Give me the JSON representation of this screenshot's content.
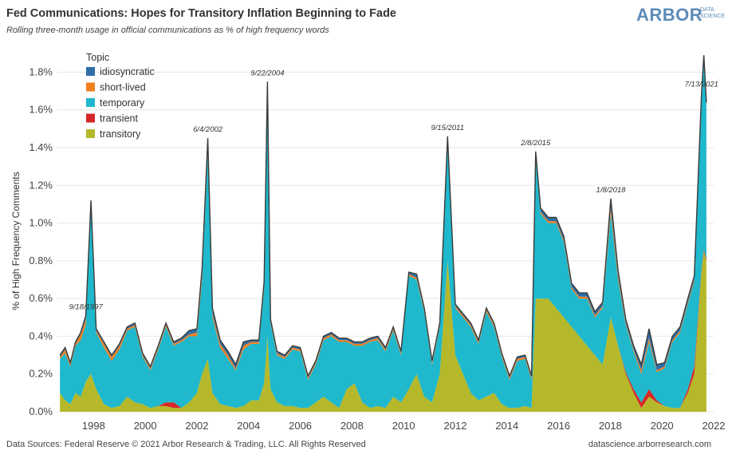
{
  "header": {
    "title": "Fed Communications: Hopes for Transitory Inflation Beginning to Fade",
    "subtitle": "Rolling three-month usage in official communications as % of high frequency words"
  },
  "logo": {
    "main": "ARBOR",
    "sub_line1": "DATA",
    "sub_line2": "SCIENCE"
  },
  "footer": {
    "left": "Data Sources: Federal Reserve © 2021 Arbor Research & Trading, LLC. All Rights Reserved",
    "right": "datascience.arborresearch.com"
  },
  "chart_data": {
    "type": "area",
    "stacked": true,
    "ylabel": "% of High Frequency Comments",
    "xlabel": "",
    "ylim": [
      0,
      1.95
    ],
    "xlim": [
      1996.6,
      2022.0
    ],
    "y_ticks": [
      "0.0%",
      "0.2%",
      "0.4%",
      "0.6%",
      "0.8%",
      "1.0%",
      "1.2%",
      "1.4%",
      "1.6%",
      "1.8%"
    ],
    "x_ticks": [
      "1998",
      "2000",
      "2002",
      "2004",
      "2006",
      "2008",
      "2010",
      "2012",
      "2014",
      "2016",
      "2018",
      "2020",
      "2022"
    ],
    "grid": true,
    "legend": {
      "title": "Topic",
      "position": "top-left"
    },
    "x": [
      1996.7,
      1996.9,
      1997.1,
      1997.3,
      1997.5,
      1997.7,
      1997.9,
      1998.1,
      1998.4,
      1998.7,
      1999.0,
      1999.3,
      1999.6,
      1999.9,
      2000.2,
      2000.5,
      2000.8,
      2001.1,
      2001.4,
      2001.7,
      2002.0,
      2002.2,
      2002.42,
      2002.6,
      2002.9,
      2003.2,
      2003.5,
      2003.8,
      2004.1,
      2004.4,
      2004.6,
      2004.73,
      2004.85,
      2005.1,
      2005.4,
      2005.7,
      2006.0,
      2006.3,
      2006.6,
      2006.9,
      2007.2,
      2007.5,
      2007.8,
      2008.1,
      2008.4,
      2008.7,
      2009.0,
      2009.3,
      2009.6,
      2009.9,
      2010.2,
      2010.5,
      2010.8,
      2011.1,
      2011.4,
      2011.7,
      2012.0,
      2012.3,
      2012.6,
      2012.9,
      2013.2,
      2013.5,
      2013.8,
      2014.1,
      2014.4,
      2014.7,
      2014.95,
      2015.11,
      2015.3,
      2015.6,
      2015.9,
      2016.2,
      2016.5,
      2016.8,
      2017.1,
      2017.4,
      2017.7,
      2018.02,
      2018.3,
      2018.6,
      2018.9,
      2019.2,
      2019.5,
      2019.8,
      2020.1,
      2020.4,
      2020.7,
      2021.0,
      2021.25,
      2021.53,
      2021.62,
      2021.72
    ],
    "series": [
      {
        "name": "idiosyncratic",
        "color": "#2e6ea6",
        "values": [
          0.01,
          0.01,
          0.01,
          0.01,
          0.01,
          0.02,
          0.01,
          0.01,
          0.01,
          0.01,
          0.01,
          0.01,
          0.01,
          0.01,
          0.01,
          0.01,
          0.01,
          0.01,
          0.01,
          0.02,
          0.02,
          0.03,
          0.04,
          0.03,
          0.02,
          0.02,
          0.02,
          0.02,
          0.01,
          0.01,
          0.02,
          0.03,
          0.01,
          0.01,
          0.01,
          0.01,
          0.01,
          0.01,
          0.01,
          0.01,
          0.01,
          0.01,
          0.01,
          0.01,
          0.01,
          0.01,
          0.01,
          0.01,
          0.01,
          0.01,
          0.01,
          0.02,
          0.01,
          0.01,
          0.01,
          0.02,
          0.01,
          0.01,
          0.01,
          0.01,
          0.01,
          0.01,
          0.01,
          0.01,
          0.01,
          0.01,
          0.01,
          0.02,
          0.02,
          0.02,
          0.02,
          0.02,
          0.02,
          0.02,
          0.02,
          0.02,
          0.02,
          0.05,
          0.03,
          0.02,
          0.02,
          0.03,
          0.05,
          0.03,
          0.02,
          0.02,
          0.02,
          0.02,
          0.02,
          0.02,
          0.02,
          0.02
        ]
      },
      {
        "name": "short-lived",
        "color": "#f07f1e",
        "values": [
          0.01,
          0.02,
          0.01,
          0.01,
          0.03,
          0.03,
          0.01,
          0.01,
          0.02,
          0.02,
          0.02,
          0.01,
          0.01,
          0.01,
          0.01,
          0.01,
          0.01,
          0.01,
          0.01,
          0.01,
          0.02,
          0.03,
          0.03,
          0.02,
          0.02,
          0.02,
          0.01,
          0.02,
          0.01,
          0.01,
          0.02,
          0.02,
          0.01,
          0.01,
          0.01,
          0.01,
          0.01,
          0.01,
          0.01,
          0.01,
          0.01,
          0.01,
          0.01,
          0.01,
          0.01,
          0.01,
          0.01,
          0.01,
          0.01,
          0.01,
          0.01,
          0.01,
          0.01,
          0.01,
          0.01,
          0.02,
          0.01,
          0.01,
          0.01,
          0.01,
          0.01,
          0.01,
          0.01,
          0.01,
          0.01,
          0.01,
          0.01,
          0.01,
          0.01,
          0.01,
          0.01,
          0.01,
          0.01,
          0.01,
          0.01,
          0.01,
          0.01,
          0.03,
          0.02,
          0.01,
          0.01,
          0.02,
          0.02,
          0.01,
          0.01,
          0.01,
          0.01,
          0.01,
          0.01,
          0.01,
          0.01,
          0.01
        ]
      },
      {
        "name": "temporary",
        "color": "#1fb8cc",
        "values": [
          0.18,
          0.25,
          0.2,
          0.25,
          0.3,
          0.3,
          0.9,
          0.3,
          0.3,
          0.25,
          0.3,
          0.35,
          0.4,
          0.25,
          0.2,
          0.3,
          0.4,
          0.3,
          0.35,
          0.35,
          0.3,
          0.5,
          1.1,
          0.4,
          0.3,
          0.25,
          0.2,
          0.3,
          0.3,
          0.3,
          0.5,
          1.3,
          0.35,
          0.25,
          0.25,
          0.3,
          0.3,
          0.15,
          0.2,
          0.3,
          0.35,
          0.35,
          0.25,
          0.2,
          0.3,
          0.35,
          0.35,
          0.3,
          0.35,
          0.25,
          0.6,
          0.5,
          0.45,
          0.2,
          0.25,
          0.62,
          0.25,
          0.3,
          0.35,
          0.3,
          0.45,
          0.35,
          0.25,
          0.15,
          0.25,
          0.25,
          0.15,
          0.75,
          0.45,
          0.4,
          0.45,
          0.4,
          0.2,
          0.2,
          0.25,
          0.2,
          0.3,
          0.55,
          0.35,
          0.25,
          0.2,
          0.15,
          0.25,
          0.15,
          0.2,
          0.35,
          0.4,
          0.45,
          0.45,
          0.9,
          1.0,
          0.8
        ]
      },
      {
        "name": "transient",
        "color": "#d62728",
        "values": [
          0.0,
          0.0,
          0.0,
          0.0,
          0.0,
          0.0,
          0.0,
          0.0,
          0.0,
          0.0,
          0.0,
          0.0,
          0.0,
          0.0,
          0.0,
          0.0,
          0.02,
          0.03,
          0.0,
          0.0,
          0.0,
          0.0,
          0.0,
          0.0,
          0.0,
          0.0,
          0.0,
          0.0,
          0.0,
          0.0,
          0.0,
          0.0,
          0.0,
          0.0,
          0.0,
          0.0,
          0.0,
          0.0,
          0.0,
          0.0,
          0.0,
          0.0,
          0.0,
          0.0,
          0.0,
          0.0,
          0.0,
          0.0,
          0.0,
          0.0,
          0.0,
          0.0,
          0.0,
          0.0,
          0.0,
          0.0,
          0.0,
          0.0,
          0.0,
          0.0,
          0.0,
          0.0,
          0.0,
          0.0,
          0.0,
          0.0,
          0.0,
          0.0,
          0.0,
          0.0,
          0.0,
          0.0,
          0.0,
          0.0,
          0.0,
          0.0,
          0.0,
          0.0,
          0.0,
          0.01,
          0.02,
          0.03,
          0.04,
          0.01,
          0.0,
          0.0,
          0.0,
          0.02,
          0.04,
          0.01,
          0.01,
          0.01
        ]
      },
      {
        "name": "transitory",
        "color": "#b5b82a",
        "values": [
          0.1,
          0.06,
          0.04,
          0.1,
          0.08,
          0.16,
          0.2,
          0.12,
          0.04,
          0.02,
          0.03,
          0.08,
          0.05,
          0.04,
          0.02,
          0.03,
          0.03,
          0.02,
          0.02,
          0.05,
          0.1,
          0.2,
          0.28,
          0.1,
          0.04,
          0.03,
          0.02,
          0.03,
          0.06,
          0.06,
          0.15,
          0.4,
          0.12,
          0.05,
          0.03,
          0.03,
          0.02,
          0.02,
          0.05,
          0.08,
          0.05,
          0.02,
          0.12,
          0.15,
          0.05,
          0.02,
          0.03,
          0.02,
          0.08,
          0.05,
          0.12,
          0.2,
          0.08,
          0.05,
          0.2,
          0.8,
          0.3,
          0.2,
          0.1,
          0.06,
          0.08,
          0.1,
          0.04,
          0.02,
          0.02,
          0.03,
          0.02,
          0.6,
          0.6,
          0.6,
          0.55,
          0.5,
          0.45,
          0.4,
          0.35,
          0.3,
          0.25,
          0.5,
          0.35,
          0.2,
          0.1,
          0.02,
          0.08,
          0.05,
          0.03,
          0.02,
          0.02,
          0.1,
          0.2,
          0.75,
          0.85,
          0.8
        ]
      }
    ],
    "annotations": [
      {
        "label": "9/18/1997",
        "x": 1997.71
      },
      {
        "label": "6/4/2002",
        "x": 2002.42
      },
      {
        "label": "9/22/2004",
        "x": 2004.73
      },
      {
        "label": "9/15/2011",
        "x": 2011.71
      },
      {
        "label": "2/8/2015",
        "x": 2015.11
      },
      {
        "label": "1/8/2018",
        "x": 2018.02
      },
      {
        "label": "7/13/2021",
        "x": 2021.53
      }
    ]
  }
}
